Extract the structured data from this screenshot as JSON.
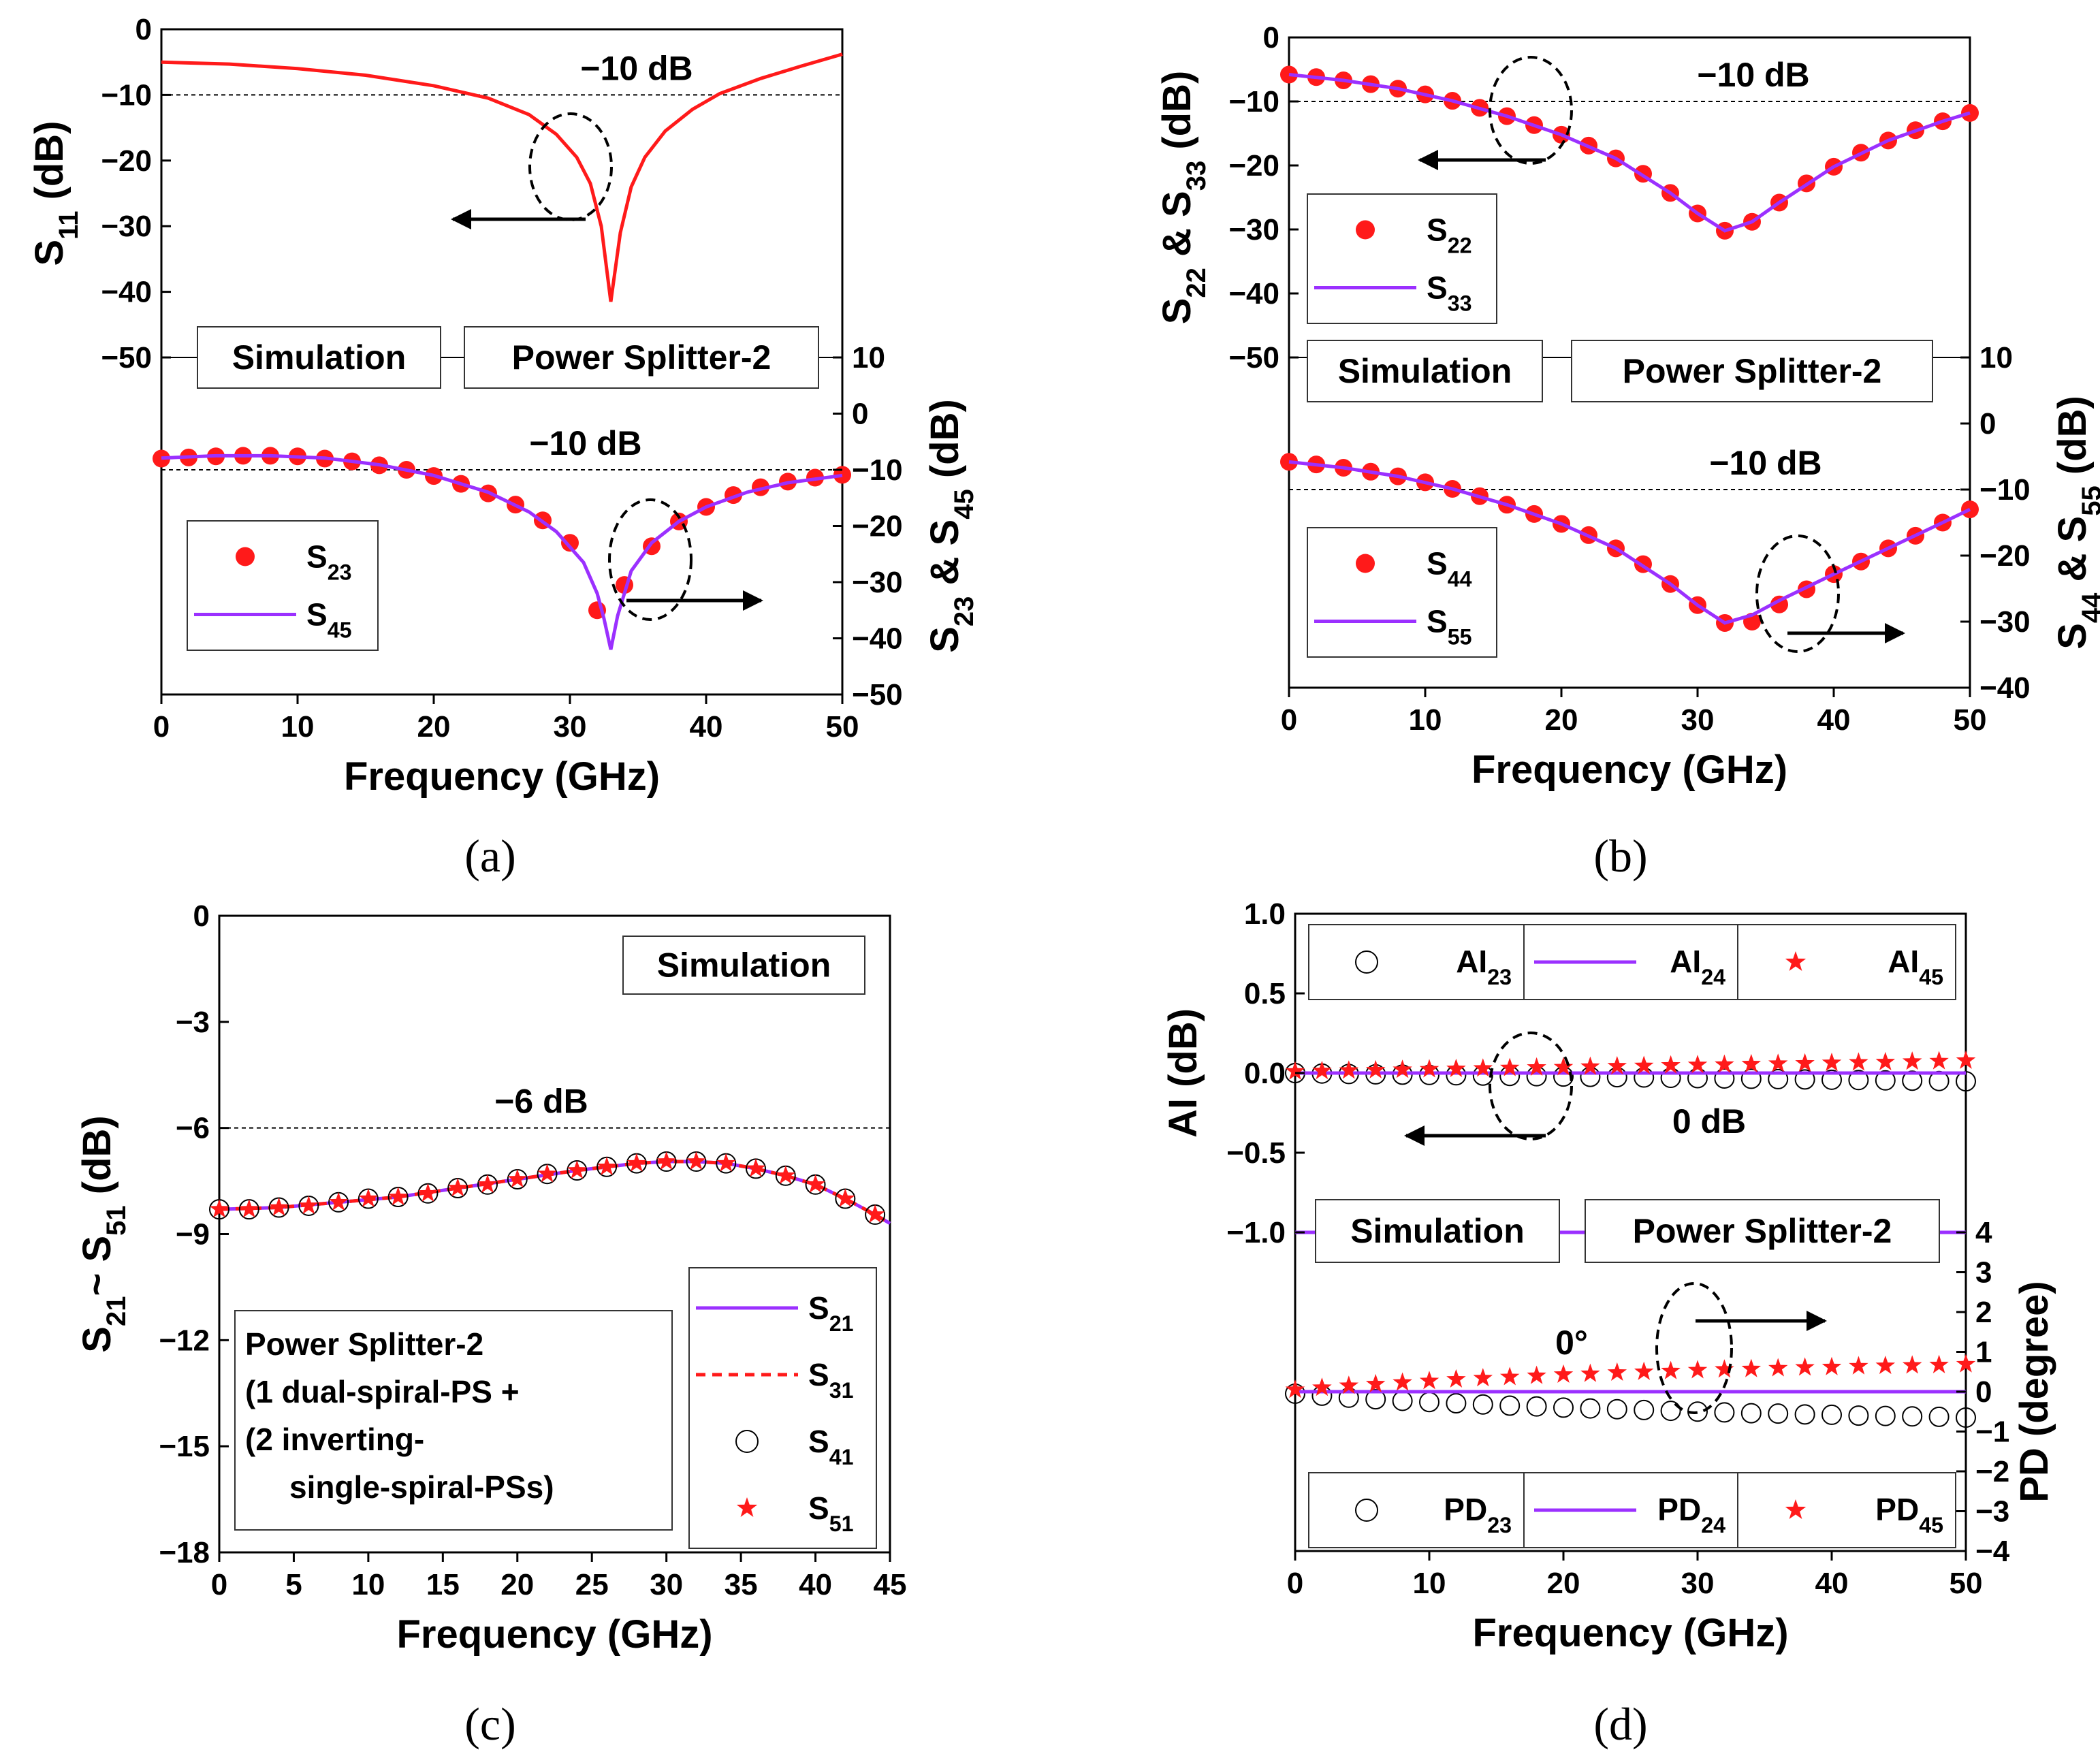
{
  "figure": {
    "panel_labels": [
      "(a)",
      "(b)",
      "(c)",
      "(d)"
    ]
  },
  "chart_data": [
    {
      "id": "a",
      "type": "line",
      "title": "",
      "xlabel": "Frequency (GHz)",
      "xlim": [
        0,
        50
      ],
      "xticks": [
        "0",
        "10",
        "20",
        "30",
        "40",
        "50"
      ],
      "top": {
        "ylabel": "S11 (dB)",
        "ylim": [
          -50,
          0
        ],
        "yticks": [
          "0",
          "−10",
          "−20",
          "−30",
          "−40",
          "−50"
        ],
        "ref_label": "−10 dB",
        "series": [
          {
            "name": "S11",
            "style": "line",
            "color": "#ff1a1a",
            "x": [
              0,
              5,
              10,
              15,
              20,
              24,
              27,
              29,
              30.5,
              31.5,
              32.3,
              33,
              33.7,
              34.5,
              35.5,
              37,
              39,
              41,
              44,
              47,
              50
            ],
            "y": [
              -5.0,
              -5.3,
              -6.0,
              -7.0,
              -8.6,
              -10.5,
              -13.0,
              -16.0,
              -19.5,
              -23.5,
              -30,
              -41.5,
              -31,
              -24,
              -19.5,
              -15.5,
              -12.2,
              -9.8,
              -7.5,
              -5.6,
              -3.8
            ]
          }
        ]
      },
      "bottom": {
        "ylabel": "S23 & S45 (dB)",
        "ylim": [
          -50,
          10
        ],
        "yticks": [
          "10",
          "0",
          "−10",
          "−20",
          "−30",
          "−40",
          "−50"
        ],
        "ref_label": "−10 dB",
        "series": [
          {
            "name": "S23",
            "style": "markers",
            "color": "#ff1a1a",
            "x": [
              0,
              2,
              4,
              6,
              8,
              10,
              12,
              14,
              16,
              18,
              20,
              22,
              24,
              26,
              28,
              30,
              32,
              34,
              36,
              38,
              40,
              42,
              44,
              46,
              48,
              50
            ],
            "y": [
              -8.0,
              -7.8,
              -7.6,
              -7.5,
              -7.5,
              -7.6,
              -8.0,
              -8.5,
              -9.2,
              -10.0,
              -11.1,
              -12.5,
              -14.2,
              -16.2,
              -19.0,
              -23.0,
              -35.0,
              -30.5,
              -23.6,
              -19.2,
              -16.6,
              -14.5,
              -13.1,
              -12.1,
              -11.4,
              -10.9
            ]
          },
          {
            "name": "S45",
            "style": "line",
            "color": "#9b30ff",
            "x": [
              0,
              4,
              8,
              12,
              16,
              20,
              24,
              27,
              29,
              31,
              32,
              32.5,
              33,
              33.5,
              34.5,
              36,
              38,
              40,
              43,
              46,
              50
            ],
            "y": [
              -7.9,
              -7.5,
              -7.5,
              -7.9,
              -9.1,
              -11.0,
              -14.0,
              -17.5,
              -21.0,
              -26.5,
              -32.0,
              -36.5,
              -42.0,
              -36.0,
              -28.0,
              -23.0,
              -19.2,
              -16.6,
              -14.0,
              -12.3,
              -11.0
            ]
          }
        ]
      },
      "labels": [
        "Simulation",
        "Power Splitter-2"
      ],
      "legend": [
        "S23",
        "S45"
      ]
    },
    {
      "id": "b",
      "type": "line",
      "title": "",
      "xlabel": "Frequency (GHz)",
      "xlim": [
        0,
        50
      ],
      "xticks": [
        "0",
        "10",
        "20",
        "30",
        "40",
        "50"
      ],
      "top": {
        "ylabel": "S22 & S33 (dB)",
        "ylim": [
          -50,
          0
        ],
        "yticks": [
          "0",
          "−10",
          "−20",
          "−30",
          "−40",
          "−50"
        ],
        "ref_label": "−10 dB",
        "series": [
          {
            "name": "S22",
            "style": "markers",
            "color": "#ff1a1a",
            "x": [
              0,
              2,
              4,
              6,
              8,
              10,
              12,
              14,
              16,
              18,
              20,
              22,
              24,
              26,
              28,
              30,
              32,
              34,
              36,
              38,
              40,
              42,
              44,
              46,
              48,
              50
            ],
            "y": [
              -5.8,
              -6.2,
              -6.7,
              -7.3,
              -8.0,
              -8.9,
              -9.9,
              -11.0,
              -12.3,
              -13.7,
              -15.2,
              -16.9,
              -18.9,
              -21.3,
              -24.3,
              -27.5,
              -30.2,
              -28.8,
              -25.8,
              -22.8,
              -20.2,
              -18.0,
              -16.1,
              -14.5,
              -13.1,
              -11.8
            ]
          },
          {
            "name": "S33",
            "style": "line",
            "color": "#9b30ff",
            "x": [
              0,
              4,
              8,
              12,
              16,
              20,
              24,
              28,
              30,
              32,
              34,
              36,
              40,
              44,
              48,
              50
            ],
            "y": [
              -5.8,
              -6.7,
              -8.0,
              -9.9,
              -12.3,
              -15.2,
              -18.9,
              -24.3,
              -27.5,
              -30.2,
              -28.8,
              -25.8,
              -20.2,
              -16.1,
              -13.1,
              -11.8
            ]
          }
        ]
      },
      "bottom": {
        "ylabel": "S44 & S55 (dB)",
        "ylim": [
          -40,
          10
        ],
        "yticks": [
          "10",
          "0",
          "−10",
          "−20",
          "−30",
          "−40"
        ],
        "ref_label": "−10 dB",
        "series": [
          {
            "name": "S44",
            "style": "markers",
            "color": "#ff1a1a",
            "x": [
              0,
              2,
              4,
              6,
              8,
              10,
              12,
              14,
              16,
              18,
              20,
              22,
              24,
              26,
              28,
              30,
              32,
              34,
              36,
              38,
              40,
              42,
              44,
              46,
              48,
              50
            ],
            "y": [
              -5.8,
              -6.2,
              -6.7,
              -7.3,
              -8.0,
              -8.9,
              -9.9,
              -11.0,
              -12.3,
              -13.7,
              -15.2,
              -16.9,
              -18.9,
              -21.3,
              -24.3,
              -27.5,
              -30.2,
              -30.0,
              -27.4,
              -25.1,
              -22.8,
              -20.9,
              -18.9,
              -17.0,
              -15.0,
              -13.0
            ]
          },
          {
            "name": "S55",
            "style": "line",
            "color": "#9b30ff",
            "x": [
              0,
              4,
              8,
              12,
              16,
              20,
              24,
              28,
              30,
              32,
              34,
              36,
              40,
              44,
              48,
              50
            ],
            "y": [
              -5.8,
              -6.7,
              -8.0,
              -9.9,
              -12.3,
              -15.2,
              -18.9,
              -24.3,
              -27.5,
              -30.2,
              -29.0,
              -26.8,
              -22.8,
              -18.9,
              -15.0,
              -13.0
            ]
          }
        ]
      },
      "labels": [
        "Simulation",
        "Power Splitter-2"
      ],
      "legend": [
        "S22",
        "S33",
        "S44",
        "S55"
      ]
    },
    {
      "id": "c",
      "type": "line",
      "title": "",
      "xlabel": "Frequency (GHz)",
      "ylabel": "S21~ S51 (dB)",
      "xlim": [
        0,
        45
      ],
      "xticks": [
        "0",
        "5",
        "10",
        "15",
        "20",
        "25",
        "30",
        "35",
        "40",
        "45"
      ],
      "ylim": [
        -18,
        0
      ],
      "yticks": [
        "0",
        "−3",
        "−6",
        "−9",
        "−12",
        "−15",
        "−18"
      ],
      "ref_label": "−6 dB",
      "series": [
        {
          "name": "S21",
          "style": "line",
          "color": "#9b30ff",
          "x": [
            0,
            4,
            8,
            12,
            16,
            20,
            24,
            28,
            30,
            32,
            34,
            36,
            38,
            40,
            42,
            44,
            45
          ],
          "y": [
            -8.3,
            -8.25,
            -8.1,
            -7.95,
            -7.7,
            -7.45,
            -7.2,
            -7.0,
            -6.95,
            -6.95,
            -7.0,
            -7.15,
            -7.35,
            -7.6,
            -8.0,
            -8.45,
            -8.7
          ]
        },
        {
          "name": "S31",
          "style": "dashed",
          "color": "#ff1a1a",
          "x": [
            0,
            4,
            8,
            12,
            16,
            20,
            24,
            28,
            30,
            32,
            34,
            36,
            38,
            40,
            42,
            44,
            45
          ],
          "y": [
            -8.3,
            -8.25,
            -8.1,
            -7.95,
            -7.7,
            -7.45,
            -7.2,
            -7.0,
            -6.95,
            -6.95,
            -7.0,
            -7.15,
            -7.35,
            -7.6,
            -8.0,
            -8.45,
            -8.7
          ]
        },
        {
          "name": "S41",
          "style": "open-circles",
          "color": "#000000",
          "x": [
            0,
            2,
            4,
            6,
            8,
            10,
            12,
            14,
            16,
            18,
            20,
            22,
            24,
            26,
            28,
            30,
            32,
            34,
            36,
            38,
            40,
            42,
            44
          ],
          "y": [
            -8.3,
            -8.3,
            -8.25,
            -8.2,
            -8.1,
            -8.0,
            -7.95,
            -7.85,
            -7.7,
            -7.6,
            -7.45,
            -7.3,
            -7.2,
            -7.1,
            -7.0,
            -6.95,
            -6.95,
            -7.0,
            -7.15,
            -7.35,
            -7.6,
            -8.0,
            -8.45
          ]
        },
        {
          "name": "S51",
          "style": "stars",
          "color": "#ff1a1a",
          "x": [
            0,
            2,
            4,
            6,
            8,
            10,
            12,
            14,
            16,
            18,
            20,
            22,
            24,
            26,
            28,
            30,
            32,
            34,
            36,
            38,
            40,
            42,
            44
          ],
          "y": [
            -8.3,
            -8.3,
            -8.25,
            -8.2,
            -8.1,
            -8.0,
            -7.95,
            -7.85,
            -7.7,
            -7.6,
            -7.45,
            -7.3,
            -7.2,
            -7.1,
            -7.0,
            -6.95,
            -6.95,
            -7.0,
            -7.15,
            -7.35,
            -7.6,
            -8.0,
            -8.45
          ]
        }
      ],
      "labels": [
        "Simulation"
      ],
      "note": [
        "Power Splitter-2",
        "(1 dual-spiral-PS +",
        "(2 inverting-",
        "single-spiral-PSs)"
      ],
      "legend": [
        "S21",
        "S31",
        "S41",
        "S51"
      ]
    },
    {
      "id": "d",
      "type": "scatter",
      "title": "",
      "xlabel": "Frequency (GHz)",
      "xlim": [
        0,
        50
      ],
      "xticks": [
        "0",
        "10",
        "20",
        "30",
        "40",
        "50"
      ],
      "top": {
        "ylabel": "AI (dB)",
        "ylim": [
          -1.0,
          1.0
        ],
        "yticks": [
          "1.0",
          "0.5",
          "0.0",
          "−0.5",
          "−1.0"
        ],
        "ref_label": "0 dB",
        "series": [
          {
            "name": "AI23",
            "style": "open-circles",
            "color": "#000000",
            "x": [
              0,
              2,
              4,
              6,
              8,
              10,
              12,
              14,
              16,
              18,
              20,
              22,
              24,
              26,
              28,
              30,
              32,
              34,
              36,
              38,
              40,
              42,
              44,
              46,
              48,
              50
            ],
            "y": [
              0.0,
              -0.003,
              -0.006,
              -0.008,
              -0.01,
              -0.012,
              -0.014,
              -0.016,
              -0.018,
              -0.02,
              -0.022,
              -0.024,
              -0.026,
              -0.028,
              -0.03,
              -0.032,
              -0.034,
              -0.036,
              -0.038,
              -0.04,
              -0.042,
              -0.044,
              -0.046,
              -0.048,
              -0.05,
              -0.052
            ]
          },
          {
            "name": "AI24",
            "style": "line",
            "color": "#9b30ff",
            "x": [
              0,
              50
            ],
            "y": [
              0.0,
              0.0
            ]
          },
          {
            "name": "AI45",
            "style": "stars",
            "color": "#ff1a1a",
            "x": [
              0,
              2,
              4,
              6,
              8,
              10,
              12,
              14,
              16,
              18,
              20,
              22,
              24,
              26,
              28,
              30,
              32,
              34,
              36,
              38,
              40,
              42,
              44,
              46,
              48,
              50
            ],
            "y": [
              0.01,
              0.013,
              0.016,
              0.018,
              0.021,
              0.024,
              0.026,
              0.029,
              0.032,
              0.035,
              0.037,
              0.04,
              0.043,
              0.045,
              0.048,
              0.051,
              0.053,
              0.056,
              0.059,
              0.061,
              0.064,
              0.067,
              0.069,
              0.072,
              0.075,
              0.078
            ]
          }
        ]
      },
      "bottom": {
        "ylabel": "PD (degree)",
        "ylim": [
          -4,
          4
        ],
        "yticks": [
          "4",
          "3",
          "2",
          "1",
          "0",
          "−1",
          "−2",
          "−3",
          "−4"
        ],
        "ref_label": "0°",
        "series": [
          {
            "name": "PD23",
            "style": "open-circles",
            "color": "#000000",
            "x": [
              0,
              2,
              4,
              6,
              8,
              10,
              12,
              14,
              16,
              18,
              20,
              22,
              24,
              26,
              28,
              30,
              32,
              34,
              36,
              38,
              40,
              42,
              44,
              46,
              48,
              50
            ],
            "y": [
              -0.05,
              -0.1,
              -0.15,
              -0.19,
              -0.23,
              -0.26,
              -0.29,
              -0.32,
              -0.35,
              -0.37,
              -0.4,
              -0.42,
              -0.44,
              -0.46,
              -0.48,
              -0.5,
              -0.52,
              -0.54,
              -0.55,
              -0.57,
              -0.58,
              -0.6,
              -0.61,
              -0.62,
              -0.63,
              -0.65
            ]
          },
          {
            "name": "PD24",
            "style": "line",
            "color": "#9b30ff",
            "x": [
              0,
              50
            ],
            "y": [
              0.0,
              0.0
            ]
          },
          {
            "name": "PD45",
            "style": "stars",
            "color": "#ff1a1a",
            "x": [
              0,
              2,
              4,
              6,
              8,
              10,
              12,
              14,
              16,
              18,
              20,
              22,
              24,
              26,
              28,
              30,
              32,
              34,
              36,
              38,
              40,
              42,
              44,
              46,
              48,
              50
            ],
            "y": [
              0.05,
              0.1,
              0.15,
              0.19,
              0.23,
              0.27,
              0.31,
              0.34,
              0.37,
              0.4,
              0.43,
              0.45,
              0.48,
              0.5,
              0.52,
              0.54,
              0.56,
              0.57,
              0.59,
              0.61,
              0.62,
              0.64,
              0.65,
              0.66,
              0.67,
              0.69
            ]
          }
        ]
      },
      "labels": [
        "Simulation",
        "Power Splitter-2"
      ],
      "legend": [
        "AI23",
        "AI24",
        "AI45",
        "PD23",
        "PD24",
        "PD45"
      ]
    }
  ]
}
